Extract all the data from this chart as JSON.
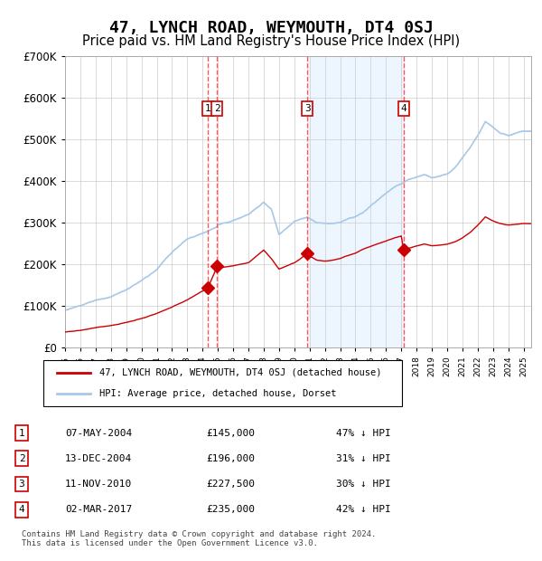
{
  "title": "47, LYNCH ROAD, WEYMOUTH, DT4 0SJ",
  "subtitle": "Price paid vs. HM Land Registry's House Price Index (HPI)",
  "title_fontsize": 13,
  "subtitle_fontsize": 10.5,
  "ylim": [
    0,
    700000
  ],
  "yticks": [
    0,
    100000,
    200000,
    300000,
    400000,
    500000,
    600000,
    700000
  ],
  "ytick_labels": [
    "£0",
    "£100K",
    "£200K",
    "£300K",
    "£400K",
    "£500K",
    "£600K",
    "£700K"
  ],
  "hpi_color": "#a8c8e8",
  "price_color": "#cc0000",
  "grid_color": "#cccccc",
  "background_color": "#ffffff",
  "shade_color": "#ddeeff",
  "dashed_line_color": "#ff4444",
  "transactions": [
    {
      "id": 1,
      "date": "07-MAY-2004",
      "year": 2004.35,
      "price": 145000,
      "pct": "47%",
      "label": "07-MAY-2004",
      "display": "£145,000",
      "hpi_note": "47% ↓ HPI"
    },
    {
      "id": 2,
      "date": "13-DEC-2004",
      "year": 2004.95,
      "price": 196000,
      "pct": "31%",
      "label": "13-DEC-2004",
      "display": "£196,000",
      "hpi_note": "31% ↓ HPI"
    },
    {
      "id": 3,
      "date": "11-NOV-2010",
      "year": 2010.86,
      "price": 227500,
      "pct": "30%",
      "label": "11-NOV-2010",
      "display": "£227,500",
      "hpi_note": "30% ↓ HPI"
    },
    {
      "id": 4,
      "date": "02-MAR-2017",
      "year": 2017.17,
      "price": 235000,
      "pct": "42%",
      "label": "02-MAR-2017",
      "display": "£235,000",
      "hpi_note": "42% ↓ HPI"
    }
  ],
  "legend_label_price": "47, LYNCH ROAD, WEYMOUTH, DT4 0SJ (detached house)",
  "legend_label_hpi": "HPI: Average price, detached house, Dorset",
  "footer": "Contains HM Land Registry data © Crown copyright and database right 2024.\nThis data is licensed under the Open Government Licence v3.0.",
  "xmin": 1995,
  "xmax": 2025.5
}
